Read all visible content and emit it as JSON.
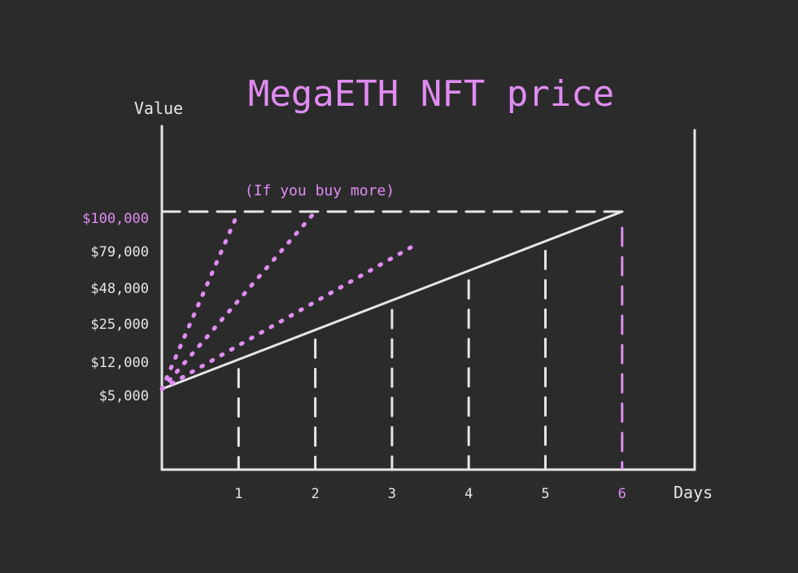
{
  "colors": {
    "background": "#2b2b2b",
    "foreground": "#e6e6e6",
    "accent": "#e08cf2"
  },
  "chart_data": {
    "type": "line",
    "title": "MegaETH NFT price",
    "xlabel": "Days",
    "ylabel": "Value",
    "annotation": "(If you buy more)",
    "x_ticks": [
      "1",
      "2",
      "3",
      "4",
      "5",
      "6"
    ],
    "highlighted_x_tick": "6",
    "y_ticks": [
      "$5,000",
      "$12,000",
      "$25,000",
      "$48,000",
      "$79,000",
      "$100,000"
    ],
    "highlighted_y_tick": "$100,000",
    "y_tick_values": [
      5000,
      12000,
      25000,
      48000,
      79000,
      100000
    ],
    "xlim": [
      0,
      7
    ],
    "grid": false,
    "series": [
      {
        "style": "solid",
        "x": [
          0,
          6
        ],
        "y": [
          5000,
          100000
        ]
      },
      {
        "style": "dotted",
        "x": [
          0,
          1
        ],
        "y": [
          5000,
          100000
        ]
      },
      {
        "style": "dotted",
        "x": [
          0,
          2
        ],
        "y": [
          5000,
          100000
        ]
      },
      {
        "style": "dotted",
        "x": [
          0,
          3.3
        ],
        "y": [
          5000,
          79000
        ]
      }
    ],
    "reference_lines": [
      {
        "orientation": "horizontal",
        "y": 100000,
        "style": "dashed"
      },
      {
        "orientation": "vertical",
        "x": 6,
        "style": "dashed",
        "highlight": true
      }
    ]
  }
}
